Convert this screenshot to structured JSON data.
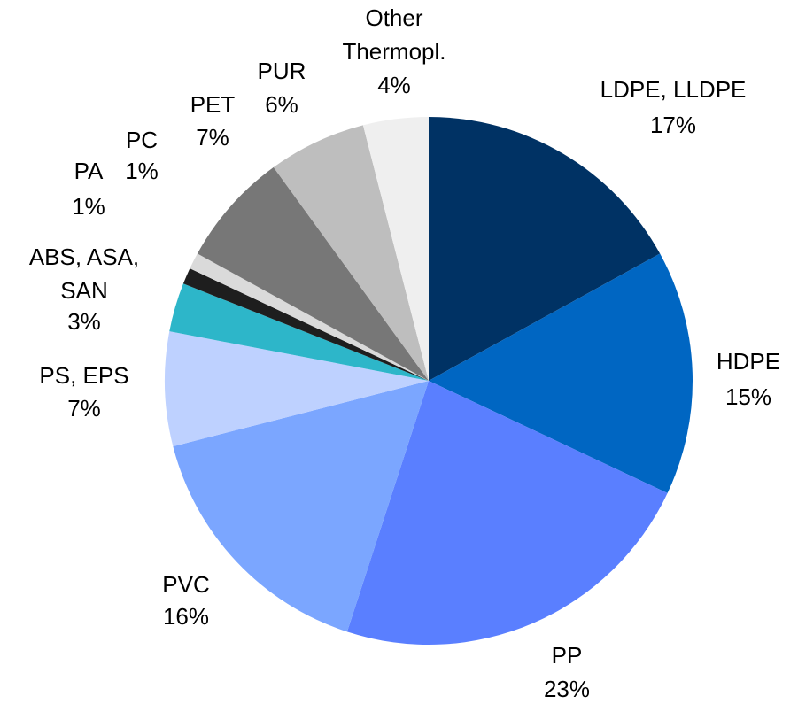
{
  "chart_data": {
    "type": "pie",
    "categories": [
      "LDPE, LLDPE",
      "HDPE",
      "PP",
      "PVC",
      "PS, EPS",
      "ABS, ASA, SAN",
      "PA",
      "PC",
      "PET",
      "PUR",
      "Other Thermopl."
    ],
    "values": [
      17,
      15,
      23,
      16,
      7,
      3,
      1,
      1,
      7,
      6,
      4
    ],
    "value_labels": [
      "17%",
      "15%",
      "23%",
      "16%",
      "7%",
      "3%",
      "1%",
      "1%",
      "7%",
      "6%",
      "4%"
    ],
    "colors": [
      "#003264",
      "#0066c2",
      "#5a7fff",
      "#7ba6ff",
      "#bed1ff",
      "#2db6c9",
      "#1e1e1e",
      "#dadada",
      "#777777",
      "#bebebe",
      "#efefef"
    ]
  }
}
